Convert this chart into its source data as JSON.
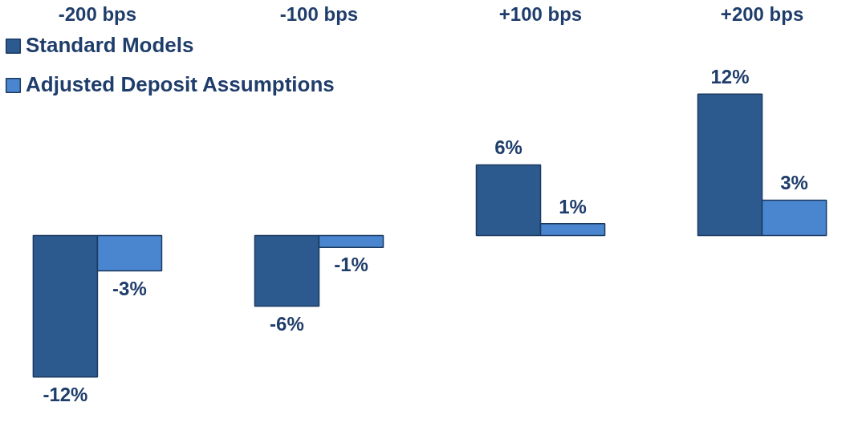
{
  "chart_data": {
    "type": "bar",
    "categories": [
      "-200 bps",
      "-100 bps",
      "+100 bps",
      "+200 bps"
    ],
    "series": [
      {
        "name": "Standard Models",
        "color": "#2d5a8e",
        "values": [
          -12,
          -6,
          6,
          12
        ],
        "value_labels": [
          "-12%",
          "-6%",
          "6%",
          "12%"
        ]
      },
      {
        "name": "Adjusted Deposit Assumptions",
        "color": "#4a86cf",
        "values": [
          -3,
          -1,
          1,
          3
        ],
        "value_labels": [
          "-3%",
          "-1%",
          "1%",
          "3%"
        ]
      }
    ],
    "legend": "top left",
    "grid": false
  }
}
